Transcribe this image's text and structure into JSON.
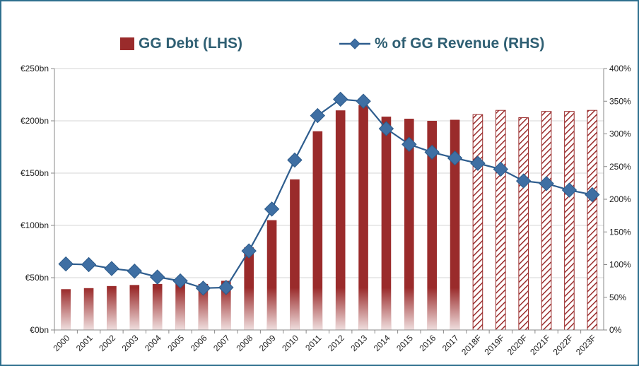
{
  "chart_data": {
    "type": "bar",
    "categories": [
      "2000",
      "2001",
      "2002",
      "2003",
      "2004",
      "2005",
      "2006",
      "2007",
      "2008",
      "2009",
      "2010",
      "2011",
      "2012",
      "2013",
      "2014",
      "2015",
      "2016",
      "2017",
      "2018F",
      "2019F",
      "2020F",
      "2021F",
      "2022F",
      "2023F"
    ],
    "series": [
      {
        "name": "GG Debt (LHS)",
        "type": "bar",
        "axis": "left",
        "color": "#9a2b2b",
        "forecast_hatched_from_index": 18,
        "values": [
          39,
          40,
          42,
          43,
          44,
          46,
          44,
          47,
          79,
          105,
          144,
          190,
          210,
          215,
          204,
          202,
          200,
          201,
          206,
          210,
          203,
          209,
          209,
          210
        ]
      },
      {
        "name": "% of GG Revenue (RHS)",
        "type": "line",
        "axis": "right",
        "marker": "diamond",
        "color": "#2e5d8e",
        "values": [
          101,
          100,
          94,
          90,
          81,
          75,
          64,
          65,
          121,
          185,
          260,
          328,
          353,
          350,
          308,
          284,
          272,
          263,
          255,
          246,
          228,
          224,
          214,
          207
        ]
      }
    ],
    "y_left": {
      "ticks": [
        "€0bn",
        "€50bn",
        "€100bn",
        "€150bn",
        "€200bn",
        "€250bn"
      ],
      "ylim": [
        0,
        250
      ]
    },
    "y_right": {
      "ticks": [
        "0%",
        "50%",
        "100%",
        "150%",
        "200%",
        "250%",
        "300%",
        "350%",
        "400%"
      ],
      "ylim": [
        0,
        400
      ]
    },
    "grid": true,
    "legend_position": "top"
  }
}
